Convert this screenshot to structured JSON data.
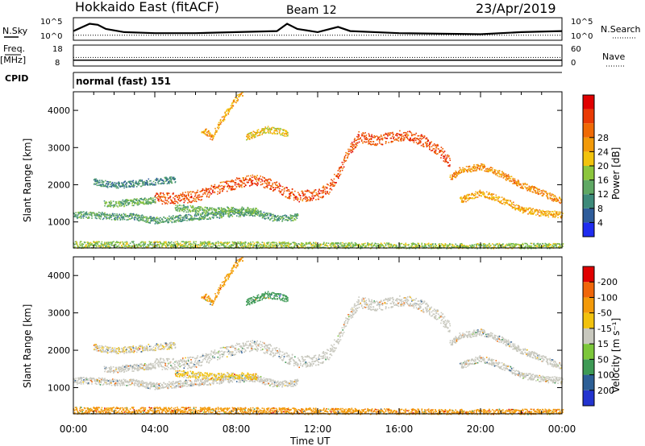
{
  "header": {
    "station": "Hokkaido East (fitACF)",
    "beam": "Beam 12",
    "date": "23/Apr/2019"
  },
  "top_panels": {
    "nsky_label": "N.Sky",
    "nsky_ticks": [
      "10^5",
      "10^0"
    ],
    "nsearch_label": "N.Search",
    "nsearch_ticks": [
      "10^5",
      "10^0"
    ],
    "freq_label_1": "Freq.",
    "freq_label_2": "[MHz]",
    "freq_ticks": [
      "18",
      "8"
    ],
    "nave_label": "Nave",
    "nave_ticks": [
      "60",
      "0"
    ],
    "cpid_label": "CPID",
    "cpid_text": "normal (fast) 151"
  },
  "x_axis": {
    "label": "Time UT",
    "ticks": [
      "00:00",
      "04:00",
      "08:00",
      "12:00",
      "16:00",
      "20:00",
      "00:00"
    ]
  },
  "y_axis": {
    "label": "Slant Range [km]",
    "ticks": [
      "1000",
      "2000",
      "3000",
      "4000"
    ]
  },
  "power_scale": {
    "label": "Power [dB]",
    "ticks": [
      "4",
      "8",
      "12",
      "16",
      "20",
      "24",
      "28"
    ],
    "colors": [
      "#1f2cf0",
      "#2e5c9a",
      "#3d8a7a",
      "#5fa864",
      "#8cc63c",
      "#f2c30c",
      "#f29a0a",
      "#f06a05",
      "#ea3a04",
      "#e00000"
    ]
  },
  "velocity_scale": {
    "label": "Velocity [m s⁻¹]",
    "ticks": [
      "200",
      "100",
      "50",
      "15",
      "-15",
      "-50",
      "-100",
      "-200"
    ],
    "colors": [
      "#2334cf",
      "#2d5f96",
      "#3e9a55",
      "#7cc73a",
      "#c8c8be",
      "#f2c20e",
      "#f39a0a",
      "#f0660a",
      "#e00000"
    ]
  },
  "chart_data": {
    "type": "heatmap",
    "x_unit": "hours UT",
    "xlim": [
      0,
      24
    ],
    "ylim": [
      300,
      4500
    ],
    "power_tracks": [
      {
        "points": [
          [
            0,
            1200
          ],
          [
            1,
            1200
          ],
          [
            2,
            1150
          ],
          [
            3,
            1150
          ],
          [
            4,
            1050
          ],
          [
            5,
            1100
          ],
          [
            6,
            1150
          ],
          [
            7,
            1200
          ],
          [
            8,
            1250
          ],
          [
            9,
            1250
          ],
          [
            10,
            1100
          ],
          [
            11,
            1150
          ]
        ],
        "db": 10
      },
      {
        "points": [
          [
            4,
            1650
          ],
          [
            5,
            1650
          ],
          [
            6,
            1700
          ],
          [
            6.5,
            1800
          ],
          [
            7,
            1900
          ],
          [
            8,
            2050
          ],
          [
            9,
            2150
          ],
          [
            10,
            1950
          ],
          [
            10.5,
            1800
          ],
          [
            11,
            1700
          ],
          [
            12,
            1750
          ],
          [
            12.5,
            1900
          ],
          [
            13,
            2300
          ],
          [
            13.5,
            2900
          ],
          [
            14,
            3300
          ],
          [
            15,
            3200
          ],
          [
            16,
            3350
          ],
          [
            17,
            3250
          ],
          [
            18,
            2900
          ],
          [
            18.5,
            2600
          ]
        ],
        "db": 26
      },
      {
        "points": [
          [
            1.5,
            1500
          ],
          [
            2,
            1500
          ],
          [
            3,
            1550
          ],
          [
            4,
            1600
          ]
        ],
        "db": 12
      },
      {
        "points": [
          [
            6.3,
            3500
          ],
          [
            6.8,
            3300
          ],
          [
            7.2,
            3700
          ],
          [
            7.8,
            4200
          ],
          [
            8.3,
            4500
          ]
        ],
        "db": 20
      },
      {
        "points": [
          [
            8.5,
            3300
          ],
          [
            9.5,
            3500
          ],
          [
            10.5,
            3400
          ]
        ],
        "db": 18
      },
      {
        "points": [
          [
            1,
            2100
          ],
          [
            2,
            2000
          ],
          [
            3,
            2050
          ],
          [
            4,
            2100
          ],
          [
            5,
            2150
          ]
        ],
        "db": 8
      },
      {
        "points": [
          [
            18.5,
            2200
          ],
          [
            19,
            2400
          ],
          [
            20,
            2500
          ],
          [
            21,
            2300
          ],
          [
            22,
            2000
          ],
          [
            23,
            1800
          ],
          [
            24,
            1550
          ]
        ],
        "db": 22
      },
      {
        "points": [
          [
            19,
            1600
          ],
          [
            20,
            1800
          ],
          [
            21,
            1600
          ],
          [
            22,
            1350
          ],
          [
            23,
            1250
          ],
          [
            24,
            1200
          ]
        ],
        "db": 20
      },
      {
        "points": [
          [
            5,
            1400
          ],
          [
            6,
            1350
          ],
          [
            7,
            1300
          ],
          [
            8,
            1350
          ],
          [
            9,
            1300
          ]
        ],
        "db": 12
      },
      {
        "points": [
          [
            0,
            400
          ],
          [
            6,
            400
          ],
          [
            12,
            380
          ],
          [
            18,
            350
          ],
          [
            24,
            350
          ]
        ],
        "db": 14
      }
    ],
    "velocity_tracks": [
      {
        "points": [
          [
            0,
            1200
          ],
          [
            1,
            1200
          ],
          [
            2,
            1150
          ],
          [
            3,
            1150
          ],
          [
            4,
            1050
          ],
          [
            5,
            1100
          ],
          [
            6,
            1150
          ],
          [
            7,
            1200
          ],
          [
            8,
            1250
          ],
          [
            9,
            1250
          ],
          [
            10,
            1100
          ],
          [
            11,
            1150
          ]
        ],
        "v": -5
      },
      {
        "points": [
          [
            4,
            1650
          ],
          [
            5,
            1650
          ],
          [
            6,
            1700
          ],
          [
            6.5,
            1800
          ],
          [
            7,
            1900
          ],
          [
            8,
            2050
          ],
          [
            9,
            2150
          ],
          [
            10,
            1950
          ],
          [
            10.5,
            1800
          ],
          [
            11,
            1700
          ],
          [
            12,
            1750
          ],
          [
            12.5,
            1900
          ],
          [
            13,
            2300
          ],
          [
            13.5,
            2900
          ],
          [
            14,
            3300
          ],
          [
            15,
            3200
          ],
          [
            16,
            3350
          ],
          [
            17,
            3250
          ],
          [
            18,
            2900
          ],
          [
            18.5,
            2600
          ]
        ],
        "v": 0
      },
      {
        "points": [
          [
            1.5,
            1500
          ],
          [
            2,
            1500
          ],
          [
            3,
            1550
          ],
          [
            4,
            1600
          ]
        ],
        "v": 0
      },
      {
        "points": [
          [
            6.3,
            3500
          ],
          [
            6.8,
            3300
          ],
          [
            7.2,
            3700
          ],
          [
            7.8,
            4200
          ],
          [
            8.3,
            4500
          ]
        ],
        "v": -40
      },
      {
        "points": [
          [
            8.5,
            3300
          ],
          [
            9.5,
            3500
          ],
          [
            10.5,
            3400
          ]
        ],
        "v": 60
      },
      {
        "points": [
          [
            1,
            2100
          ],
          [
            2,
            2000
          ],
          [
            3,
            2050
          ],
          [
            4,
            2100
          ],
          [
            5,
            2150
          ]
        ],
        "v": -10
      },
      {
        "points": [
          [
            18.5,
            2200
          ],
          [
            19,
            2400
          ],
          [
            20,
            2500
          ],
          [
            21,
            2300
          ],
          [
            22,
            2000
          ],
          [
            23,
            1800
          ],
          [
            24,
            1550
          ]
        ],
        "v": 0
      },
      {
        "points": [
          [
            19,
            1600
          ],
          [
            20,
            1800
          ],
          [
            21,
            1600
          ],
          [
            22,
            1350
          ],
          [
            23,
            1250
          ],
          [
            24,
            1200
          ]
        ],
        "v": 0
      },
      {
        "points": [
          [
            5,
            1400
          ],
          [
            6,
            1350
          ],
          [
            7,
            1300
          ],
          [
            8,
            1350
          ],
          [
            9,
            1300
          ]
        ],
        "v": -20
      },
      {
        "points": [
          [
            0,
            400
          ],
          [
            6,
            400
          ],
          [
            12,
            380
          ],
          [
            18,
            350
          ],
          [
            24,
            350
          ]
        ],
        "v": -60
      }
    ],
    "nsky_trace": [
      [
        0,
        0.4
      ],
      [
        0.8,
        0.75
      ],
      [
        1.2,
        0.7
      ],
      [
        1.6,
        0.5
      ],
      [
        2.5,
        0.35
      ],
      [
        4,
        0.3
      ],
      [
        6,
        0.3
      ],
      [
        8,
        0.35
      ],
      [
        10,
        0.4
      ],
      [
        10.5,
        0.75
      ],
      [
        11,
        0.5
      ],
      [
        12,
        0.35
      ],
      [
        13,
        0.6
      ],
      [
        13.6,
        0.4
      ],
      [
        16,
        0.3
      ],
      [
        20,
        0.25
      ],
      [
        22,
        0.35
      ],
      [
        24,
        0.4
      ]
    ],
    "nsearch_trace": [
      [
        0,
        0.2
      ],
      [
        24,
        0.2
      ]
    ],
    "freq_mhz": [
      [
        0,
        10.6
      ],
      [
        24,
        10.6
      ]
    ],
    "nave": [
      [
        0,
        24
      ],
      [
        24,
        24
      ]
    ]
  }
}
